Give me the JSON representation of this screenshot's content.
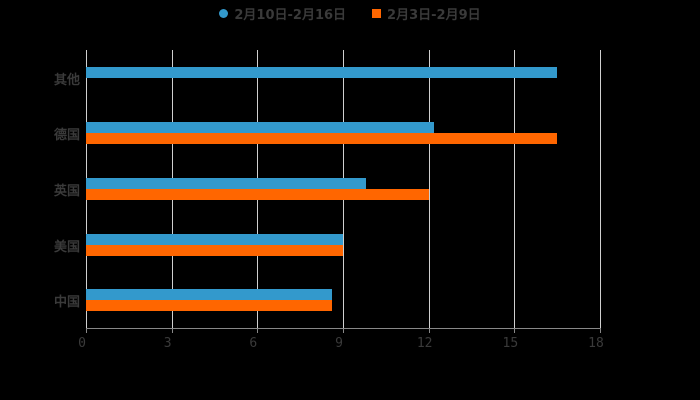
{
  "chart_data": {
    "type": "bar",
    "orientation": "horizontal",
    "title": "",
    "categories": [
      "其他",
      "德国",
      "英国",
      "美国",
      "中国"
    ],
    "series": [
      {
        "name": "2月10日-2月16日",
        "color": "#3399cc",
        "values": [
          16.5,
          12.2,
          9.8,
          9,
          8.6
        ]
      },
      {
        "name": "2月3日-2月9日",
        "color": "#ff6600",
        "values": [
          null,
          16.5,
          12,
          9,
          8.6
        ]
      }
    ],
    "xlim": [
      0,
      18
    ],
    "xticks": [
      "0",
      "3",
      "6",
      "9",
      "12",
      "15",
      "18"
    ],
    "xlabel": "",
    "ylabel": "",
    "grid": true,
    "legend_position": "top"
  },
  "legend": {
    "items": [
      {
        "label": "2月10日-2月16日",
        "color": "#3399cc",
        "shape": "circle"
      },
      {
        "label": "2月3日-2月9日",
        "color": "#ff6600",
        "shape": "square"
      }
    ]
  }
}
